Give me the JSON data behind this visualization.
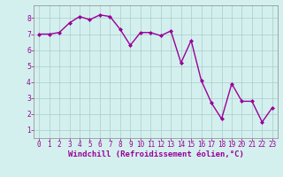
{
  "x": [
    0,
    1,
    2,
    3,
    4,
    5,
    6,
    7,
    8,
    9,
    10,
    11,
    12,
    13,
    14,
    15,
    16,
    17,
    18,
    19,
    20,
    21,
    22,
    23
  ],
  "y": [
    7.0,
    7.0,
    7.1,
    7.7,
    8.1,
    7.9,
    8.2,
    8.1,
    7.3,
    6.3,
    7.1,
    7.1,
    6.9,
    7.2,
    5.2,
    6.6,
    4.1,
    2.7,
    1.7,
    3.9,
    2.8,
    2.8,
    1.5,
    2.4
  ],
  "line_color": "#990099",
  "marker": "D",
  "marker_size": 2,
  "line_width": 1.0,
  "background_color": "#d4f0ee",
  "grid_color": "#aacccc",
  "xlabel": "Windchill (Refroidissement éolien,°C)",
  "xlabel_fontsize": 6.5,
  "xlabel_color": "#990099",
  "ylim": [
    0.5,
    8.8
  ],
  "yticks": [
    1,
    2,
    3,
    4,
    5,
    6,
    7,
    8
  ],
  "xticks": [
    0,
    1,
    2,
    3,
    4,
    5,
    6,
    7,
    8,
    9,
    10,
    11,
    12,
    13,
    14,
    15,
    16,
    17,
    18,
    19,
    20,
    21,
    22,
    23
  ],
  "tick_fontsize": 5.5,
  "tick_color": "#990099",
  "xlim": [
    -0.5,
    23.5
  ],
  "spine_color": "#888888"
}
